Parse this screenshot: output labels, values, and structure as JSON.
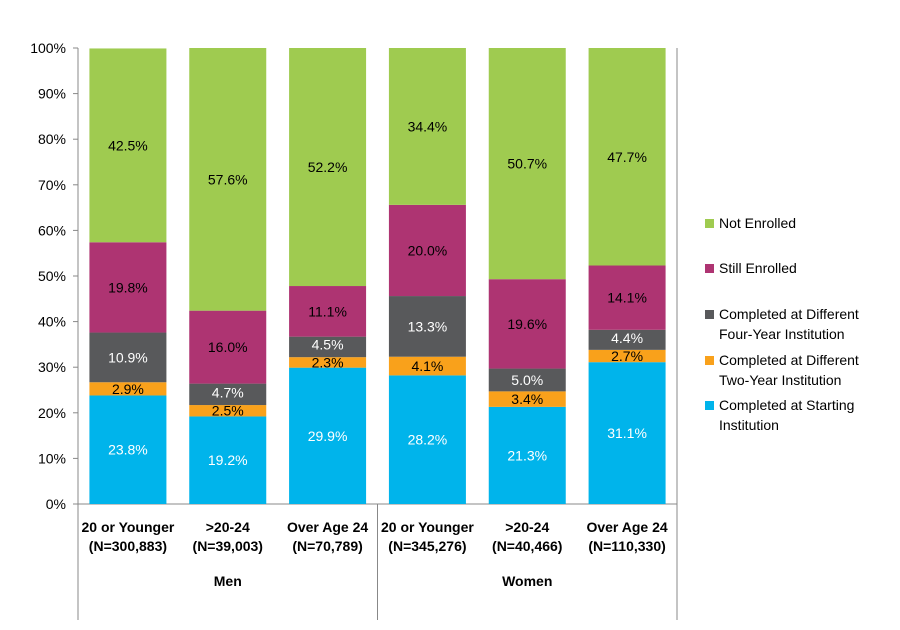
{
  "chart_data": {
    "type": "bar",
    "stacked": true,
    "ylim": [
      0,
      100
    ],
    "yticks": [
      "0%",
      "10%",
      "20%",
      "30%",
      "40%",
      "50%",
      "60%",
      "70%",
      "80%",
      "90%",
      "100%"
    ],
    "grid": false,
    "legend_position": "right",
    "groups": [
      {
        "label": "Men",
        "categories": [
          {
            "label": "20 or Younger",
            "n": "(N=300,883)"
          },
          {
            "label": ">20-24",
            "n": "(N=39,003)"
          },
          {
            "label": "Over Age 24",
            "n": "(N=70,789)"
          }
        ]
      },
      {
        "label": "Women",
        "categories": [
          {
            "label": "20 or Younger",
            "n": "(N=345,276)"
          },
          {
            "label": ">20-24",
            "n": "(N=40,466)"
          },
          {
            "label": "Over Age 24",
            "n": "(N=110,330)"
          }
        ]
      }
    ],
    "series": [
      {
        "name": "Completed at Starting Institution",
        "color": "#00B4EB",
        "label_color": "#ffffff",
        "values": [
          23.8,
          19.2,
          29.9,
          28.2,
          21.3,
          31.1
        ]
      },
      {
        "name": "Completed at Different Two-Year Institution",
        "color": "#F9A11B",
        "label_color": "#000000",
        "values": [
          2.9,
          2.5,
          2.3,
          4.1,
          3.4,
          2.7
        ]
      },
      {
        "name": "Completed at Different Four-Year Institution",
        "color": "#58595B",
        "label_color": "#ffffff",
        "values": [
          10.9,
          4.7,
          4.5,
          13.3,
          5.0,
          4.4
        ]
      },
      {
        "name": "Still Enrolled",
        "color": "#AE3472",
        "label_color": "#000000",
        "values": [
          19.8,
          16.0,
          11.1,
          20.0,
          19.6,
          14.1
        ]
      },
      {
        "name": "Not Enrolled",
        "color": "#9FCB50",
        "label_color": "#000000",
        "values": [
          42.5,
          57.6,
          52.2,
          34.4,
          50.7,
          47.7
        ]
      }
    ],
    "legend": [
      {
        "lines": [
          "Not Enrolled"
        ],
        "color": "#9FCB50"
      },
      {
        "lines": [
          "Still Enrolled"
        ],
        "color": "#AE3472"
      },
      {
        "lines": [
          "Completed at Different",
          "Four-Year Institution"
        ],
        "color": "#58595B"
      },
      {
        "lines": [
          "Completed at Different",
          "Two-Year Institution"
        ],
        "color": "#F9A11B"
      },
      {
        "lines": [
          "Completed at Starting",
          "Institution"
        ],
        "color": "#00B4EB"
      }
    ]
  }
}
